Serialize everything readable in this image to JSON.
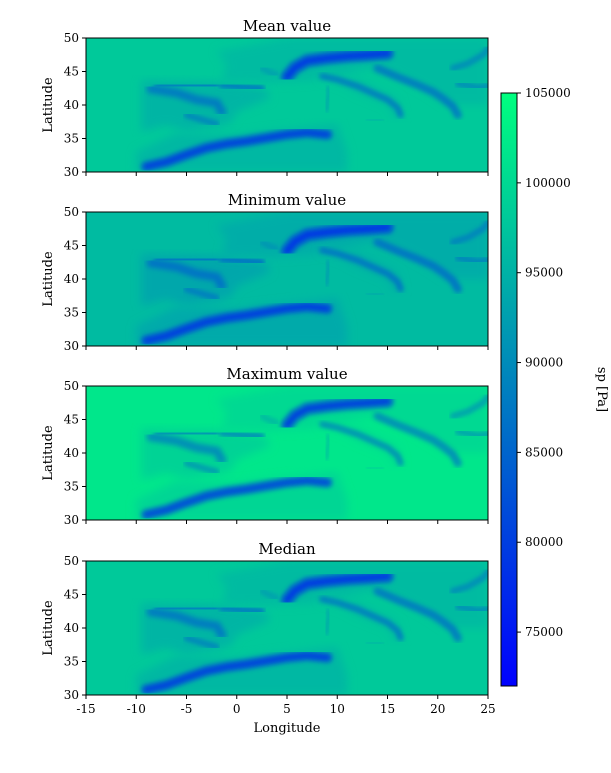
{
  "chart_data": {
    "type": "heatmap",
    "panels": [
      {
        "title": "Mean value",
        "ylabel": "Latitude",
        "variant": "mean"
      },
      {
        "title": "Minimum value",
        "ylabel": "Latitude",
        "variant": "min"
      },
      {
        "title": "Maximum value",
        "ylabel": "Latitude",
        "variant": "max"
      },
      {
        "title": "Median",
        "ylabel": "Latitude",
        "variant": "median"
      }
    ],
    "xlabel": "Longitude",
    "xlim": [
      -15,
      25
    ],
    "ylim": [
      30,
      50
    ],
    "xticks": [
      -15,
      -10,
      -5,
      0,
      5,
      10,
      15,
      20,
      25
    ],
    "yticks": [
      30,
      35,
      40,
      45,
      50
    ],
    "colorbar": {
      "label": "sp [Pa]",
      "range": [
        72000,
        105000
      ],
      "ticks": [
        75000,
        80000,
        85000,
        90000,
        95000,
        100000,
        105000
      ],
      "colors": {
        "low": "#0000ff",
        "high": "#00ff7f"
      }
    }
  }
}
